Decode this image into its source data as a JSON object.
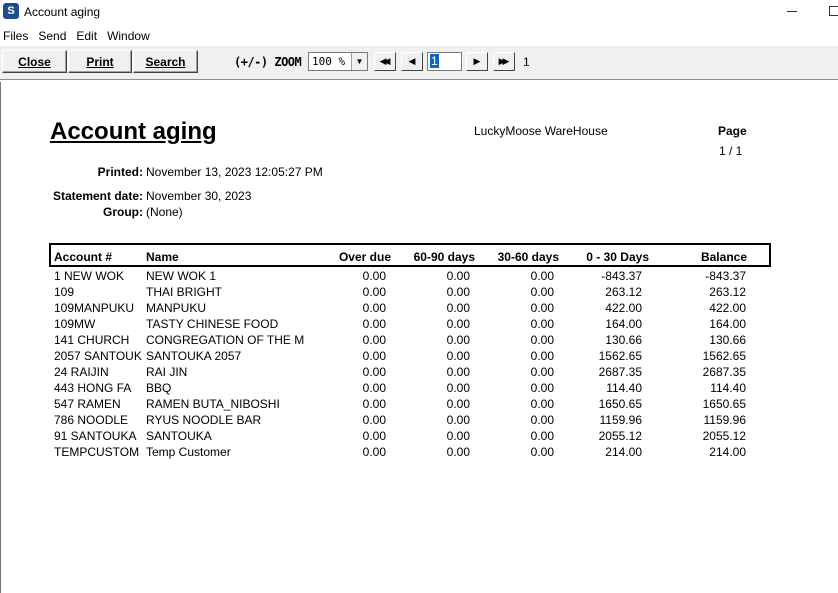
{
  "window": {
    "title": "Account aging"
  },
  "menu": [
    "Files",
    "Send",
    "Edit",
    "Window"
  ],
  "toolbar": {
    "close_label": "Close",
    "print_label": "Print",
    "search_label": "Search",
    "zoom_label": "(+/-) ZOOM",
    "zoom_value": "100 %",
    "page_input": "1",
    "page_total": "1"
  },
  "report": {
    "title": "Account aging",
    "company": "LuckyMoose WareHouse",
    "page_label": "Page",
    "page_number": "1 / 1",
    "printed_label": "Printed:",
    "printed_value": "November 13, 2023 12:05:27 PM",
    "statement_label": "Statement date:",
    "statement_value": "November 30, 2023",
    "group_label": "Group:",
    "group_value": "(None)",
    "columns": [
      "Account #",
      "Name",
      "Over due",
      "60-90 days",
      "30-60 days",
      "0 - 30 Days",
      "Balance"
    ],
    "rows": [
      [
        "1 NEW WOK",
        "NEW WOK 1",
        "0.00",
        "0.00",
        "0.00",
        "-843.37",
        "-843.37"
      ],
      [
        "109",
        "THAI BRIGHT",
        "0.00",
        "0.00",
        "0.00",
        "263.12",
        "263.12"
      ],
      [
        "109MANPUKU",
        "MANPUKU",
        "0.00",
        "0.00",
        "0.00",
        "422.00",
        "422.00"
      ],
      [
        "109MW",
        "TASTY CHINESE FOOD",
        "0.00",
        "0.00",
        "0.00",
        "164.00",
        "164.00"
      ],
      [
        "141 CHURCH",
        "CONGREGATION OF THE M",
        "0.00",
        "0.00",
        "0.00",
        "130.66",
        "130.66"
      ],
      [
        "2057 SANTOUK",
        "SANTOUKA 2057",
        "0.00",
        "0.00",
        "0.00",
        "1562.65",
        "1562.65"
      ],
      [
        "24 RAIJIN",
        "RAI JIN",
        "0.00",
        "0.00",
        "0.00",
        "2687.35",
        "2687.35"
      ],
      [
        "443 HONG FA",
        "BBQ",
        "0.00",
        "0.00",
        "0.00",
        "114.40",
        "114.40"
      ],
      [
        "547 RAMEN",
        "RAMEN BUTA_NIBOSHI",
        "0.00",
        "0.00",
        "0.00",
        "1650.65",
        "1650.65"
      ],
      [
        "786 NOODLE",
        "RYUS NOODLE BAR",
        "0.00",
        "0.00",
        "0.00",
        "1159.96",
        "1159.96"
      ],
      [
        "91 SANTOUKA",
        "SANTOUKA",
        "0.00",
        "0.00",
        "0.00",
        "2055.12",
        "2055.12"
      ],
      [
        "TEMPCUSTOM",
        "Temp Customer",
        "0.00",
        "0.00",
        "0.00",
        "214.00",
        "214.00"
      ]
    ]
  }
}
